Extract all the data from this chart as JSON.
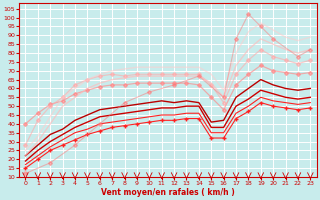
{
  "title": "",
  "xlabel": "Vent moyen/en rafales ( km/h )",
  "bg_color": "#c8ecec",
  "grid_color": "#ffffff",
  "xlim": [
    -0.5,
    23.5
  ],
  "ylim": [
    10,
    108
  ],
  "yticks": [
    10,
    15,
    20,
    25,
    30,
    35,
    40,
    45,
    50,
    55,
    60,
    65,
    70,
    75,
    80,
    85,
    90,
    95,
    100,
    105
  ],
  "xticks": [
    0,
    1,
    2,
    3,
    4,
    5,
    6,
    7,
    8,
    9,
    10,
    11,
    12,
    13,
    14,
    15,
    16,
    17,
    18,
    19,
    20,
    21,
    22,
    23
  ],
  "series": [
    {
      "x": [
        0,
        1,
        2,
        3,
        4,
        5,
        6,
        7,
        8,
        9,
        10,
        11,
        12,
        13,
        14,
        15,
        16,
        17,
        18,
        19,
        20,
        21,
        22,
        23
      ],
      "y": [
        15,
        20,
        25,
        28,
        31,
        34,
        36,
        38,
        39,
        40,
        41,
        42,
        42,
        43,
        43,
        32,
        32,
        43,
        47,
        52,
        50,
        49,
        48,
        49
      ],
      "color": "#ff2222",
      "lw": 0.8,
      "marker": "+",
      "ms": 3,
      "alpha": 1.0
    },
    {
      "x": [
        0,
        1,
        2,
        3,
        4,
        5,
        6,
        7,
        8,
        9,
        10,
        11,
        12,
        13,
        14,
        15,
        16,
        17,
        18,
        19,
        20,
        21,
        22,
        23
      ],
      "y": [
        17,
        22,
        27,
        31,
        35,
        37,
        40,
        41,
        42,
        43,
        44,
        45,
        45,
        46,
        46,
        35,
        35,
        46,
        50,
        55,
        53,
        52,
        51,
        52
      ],
      "color": "#ff2222",
      "lw": 0.8,
      "marker": null,
      "ms": 0,
      "alpha": 1.0
    },
    {
      "x": [
        0,
        1,
        2,
        3,
        4,
        5,
        6,
        7,
        8,
        9,
        10,
        11,
        12,
        13,
        14,
        15,
        16,
        17,
        18,
        19,
        20,
        21,
        22,
        23
      ],
      "y": [
        19,
        25,
        30,
        34,
        38,
        41,
        44,
        45,
        46,
        47,
        48,
        49,
        49,
        50,
        50,
        38,
        38,
        50,
        54,
        59,
        57,
        55,
        54,
        55
      ],
      "color": "#cc0000",
      "lw": 1.0,
      "marker": null,
      "ms": 0,
      "alpha": 1.0
    },
    {
      "x": [
        0,
        1,
        2,
        3,
        4,
        5,
        6,
        7,
        8,
        9,
        10,
        11,
        12,
        13,
        14,
        15,
        16,
        17,
        18,
        19,
        20,
        21,
        22,
        23
      ],
      "y": [
        22,
        28,
        34,
        37,
        42,
        45,
        48,
        49,
        50,
        51,
        52,
        53,
        52,
        53,
        52,
        41,
        42,
        55,
        60,
        65,
        62,
        60,
        59,
        60
      ],
      "color": "#bb0000",
      "lw": 1.0,
      "marker": null,
      "ms": 0,
      "alpha": 1.0
    },
    {
      "x": [
        0,
        1,
        2,
        3,
        4,
        5,
        6,
        7,
        8,
        9,
        10,
        11,
        12,
        13,
        14,
        15,
        16,
        17,
        18,
        19,
        20,
        21,
        22,
        23
      ],
      "y": [
        40,
        46,
        51,
        53,
        57,
        59,
        61,
        62,
        62,
        63,
        63,
        63,
        63,
        63,
        62,
        55,
        48,
        62,
        68,
        73,
        70,
        69,
        68,
        69
      ],
      "color": "#ff8888",
      "lw": 0.9,
      "marker": "D",
      "ms": 2,
      "alpha": 0.65
    },
    {
      "x": [
        0,
        1,
        2,
        3,
        4,
        5,
        6,
        7,
        8,
        9,
        10,
        11,
        12,
        13,
        14,
        15,
        16,
        17,
        18,
        19,
        20,
        21,
        22,
        23
      ],
      "y": [
        28,
        42,
        50,
        55,
        62,
        65,
        67,
        68,
        67,
        68,
        68,
        68,
        68,
        68,
        68,
        62,
        52,
        68,
        76,
        82,
        78,
        76,
        74,
        76
      ],
      "color": "#ffaaaa",
      "lw": 0.9,
      "marker": "D",
      "ms": 2,
      "alpha": 0.6
    },
    {
      "x": [
        0,
        1,
        2,
        3,
        4,
        5,
        6,
        7,
        8,
        9,
        10,
        11,
        12,
        13,
        14,
        15,
        16,
        17,
        18,
        19,
        20,
        21,
        22,
        23
      ],
      "y": [
        22,
        30,
        40,
        50,
        55,
        60,
        63,
        65,
        66,
        67,
        67,
        67,
        67,
        67,
        67,
        63,
        55,
        73,
        82,
        88,
        85,
        82,
        80,
        82
      ],
      "color": "#ffbbbb",
      "lw": 1.0,
      "marker": null,
      "ms": 0,
      "alpha": 0.65
    },
    {
      "x": [
        0,
        1,
        2,
        3,
        4,
        5,
        6,
        7,
        8,
        9,
        10,
        11,
        12,
        13,
        14,
        15,
        16,
        17,
        18,
        19,
        20,
        21,
        22,
        23
      ],
      "y": [
        25,
        33,
        44,
        55,
        60,
        65,
        68,
        70,
        71,
        72,
        72,
        72,
        72,
        72,
        72,
        68,
        59,
        80,
        92,
        97,
        93,
        89,
        87,
        89
      ],
      "color": "#ffcccc",
      "lw": 1.0,
      "marker": null,
      "ms": 0,
      "alpha": 0.55
    },
    {
      "x": [
        0,
        2,
        4,
        6,
        8,
        10,
        12,
        14,
        16,
        17,
        18,
        19,
        20,
        22,
        23
      ],
      "y": [
        12,
        18,
        28,
        40,
        52,
        58,
        62,
        67,
        55,
        88,
        102,
        95,
        88,
        78,
        82
      ],
      "color": "#ff7777",
      "lw": 0.8,
      "marker": "D",
      "ms": 2,
      "alpha": 0.5
    }
  ],
  "tick_label_color": "#cc0000",
  "tick_label_size": 4.5,
  "xlabel_size": 5.5,
  "xlabel_color": "#cc0000"
}
